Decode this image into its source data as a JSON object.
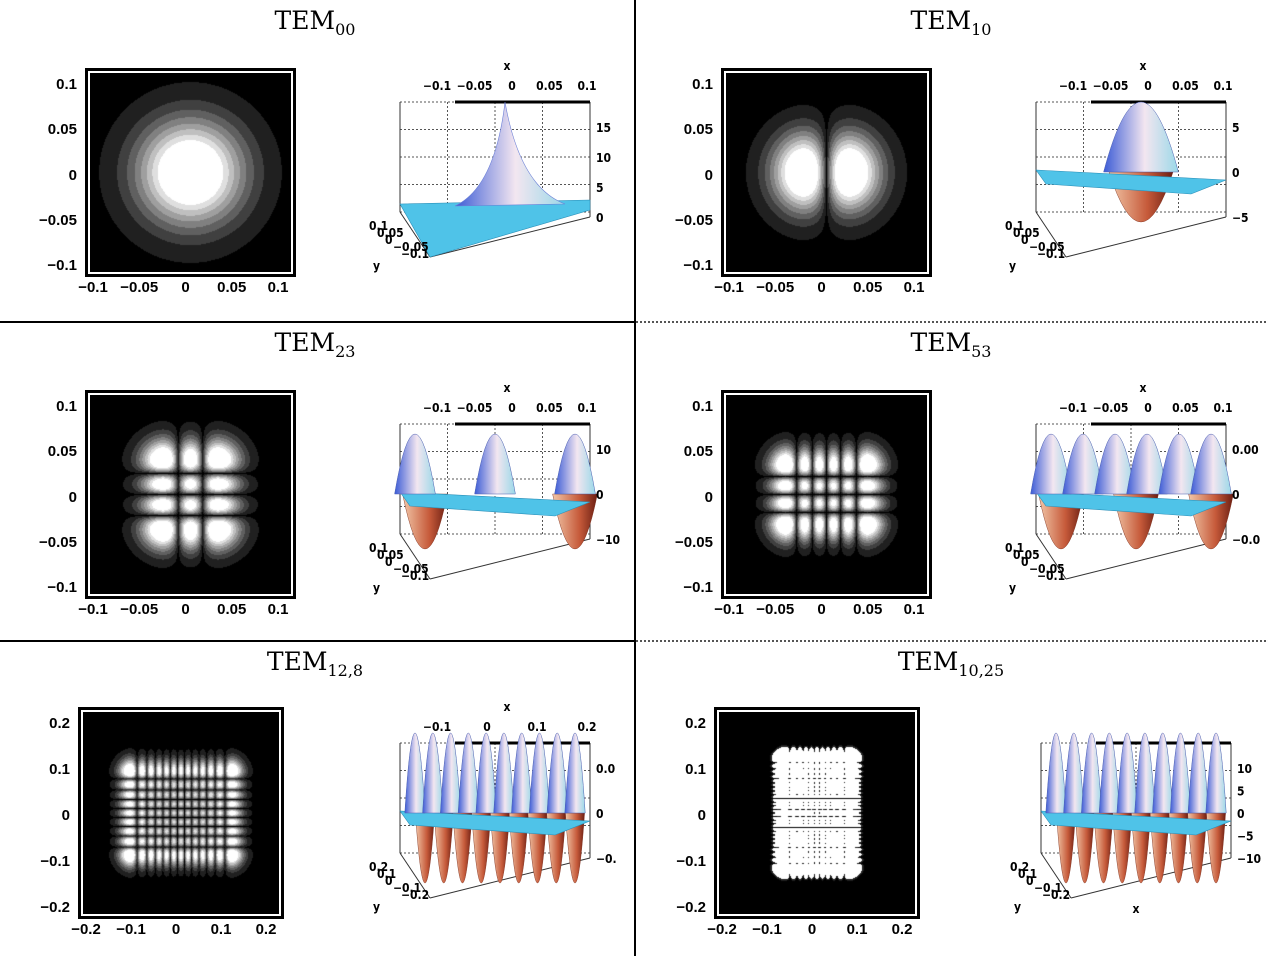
{
  "panels": [
    {
      "title_main": "TEM",
      "title_sub": "00",
      "mode": [
        0,
        0
      ],
      "density_ticks": [
        "0.1",
        "0.05",
        "0",
        "−0.05",
        "−0.1"
      ],
      "density_xticks": [
        "−0.1",
        "−0.05",
        "0",
        "0.05",
        "0.1"
      ],
      "surface_xticks": [
        "−0.1",
        "−0.05",
        "0",
        "0.05",
        "0.1"
      ],
      "surface_x_label": "x",
      "surface_y_label": "y",
      "surface_y_ticks": [
        "0.1",
        "0.05",
        "0",
        "−0.05",
        "−0.1"
      ],
      "surface_z_ticks": [
        "15",
        "10",
        "5",
        "0"
      ]
    },
    {
      "title_main": "TEM",
      "title_sub": "10",
      "mode": [
        1,
        0
      ],
      "density_ticks": [
        "0.1",
        "0.05",
        "0",
        "−0.05",
        "−0.1"
      ],
      "density_xticks": [
        "−0.1",
        "−0.05",
        "0",
        "0.05",
        "0.1"
      ],
      "surface_xticks": [
        "−0.1",
        "−0.05",
        "0",
        "0.05",
        "0.1"
      ],
      "surface_x_label": "x",
      "surface_y_label": "y",
      "surface_y_ticks": [
        "0.1",
        "0.05",
        "0",
        "−0.05",
        "−0.1"
      ],
      "surface_z_ticks": [
        "5",
        "0",
        "−5"
      ]
    },
    {
      "title_main": "TEM",
      "title_sub": "23",
      "mode": [
        2,
        3
      ],
      "density_ticks": [
        "0.1",
        "0.05",
        "0",
        "−0.05",
        "−0.1"
      ],
      "density_xticks": [
        "−0.1",
        "−0.05",
        "0",
        "0.05",
        "0.1"
      ],
      "surface_xticks": [
        "−0.1",
        "−0.05",
        "0",
        "0.05",
        "0.1"
      ],
      "surface_x_label": "x",
      "surface_y_label": "y",
      "surface_y_ticks": [
        "0.1",
        "0.05",
        "0",
        "−0.05",
        "−0.1"
      ],
      "surface_z_ticks": [
        "10",
        "0",
        "−10"
      ]
    },
    {
      "title_main": "TEM",
      "title_sub": "53",
      "mode": [
        5,
        3
      ],
      "density_ticks": [
        "0.1",
        "0.05",
        "0",
        "−0.05",
        "−0.1"
      ],
      "density_xticks": [
        "−0.1",
        "−0.05",
        "0",
        "0.05",
        "0.1"
      ],
      "surface_xticks": [
        "−0.1",
        "−0.05",
        "0",
        "0.05",
        "0.1"
      ],
      "surface_x_label": "x",
      "surface_y_label": "y",
      "surface_y_ticks": [
        "0.1",
        "0.05",
        "0",
        "−0.05",
        "−0.1"
      ],
      "surface_z_ticks": [
        "0.00",
        "0",
        "−0.0"
      ]
    },
    {
      "title_main": "TEM",
      "title_sub": "12,8",
      "mode": [
        12,
        8
      ],
      "density_ticks": [
        "0.2",
        "0.1",
        "0",
        "−0.1",
        "−0.2"
      ],
      "density_xticks": [
        "−0.2",
        "−0.1",
        "0",
        "0.1",
        "0.2"
      ],
      "surface_xticks": [
        "−0.1",
        "0",
        "0.1",
        "0.2"
      ],
      "surface_x_label": "x",
      "surface_y_label": "y",
      "surface_y_ticks": [
        "0.2",
        "0.1",
        "0",
        "−0.1",
        "−0.2"
      ],
      "surface_z_ticks": [
        "0.0",
        "0",
        "−0."
      ]
    },
    {
      "title_main": "TEM",
      "title_sub": "10,25",
      "mode": [
        10,
        25
      ],
      "density_ticks": [
        "0.2",
        "0.1",
        "0",
        "−0.1",
        "−0.2"
      ],
      "density_xticks": [
        "−0.2",
        "−0.1",
        "0",
        "0.1",
        "0.2"
      ],
      "surface_xticks": [
        "0.2",
        "0.1",
        "0",
        "−0.1",
        "−0.2"
      ],
      "surface_x_label": "x",
      "surface_y_label": "y",
      "surface_y_ticks": [
        "0.2",
        "0.1",
        "0",
        "−0.1",
        "−0.2"
      ],
      "surface_z_ticks": [
        "10",
        "5",
        "0",
        "−5",
        "−10"
      ]
    }
  ],
  "colors": {
    "background": "#000000",
    "surface_flat": "#4fc3e8",
    "surface_peak": "#f7e4d0",
    "surface_neg": "#c0402a"
  }
}
